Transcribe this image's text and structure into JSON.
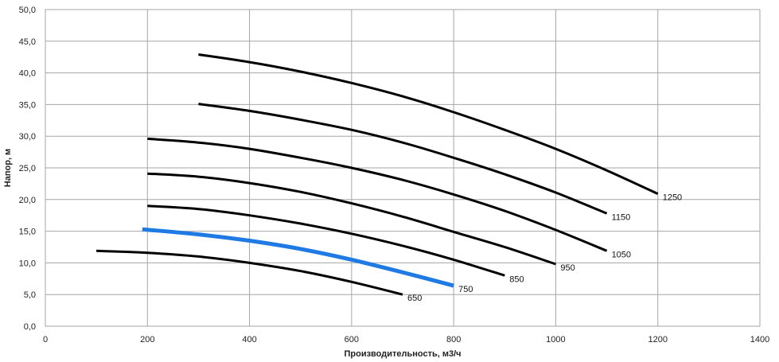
{
  "chart_data": {
    "type": "line",
    "title": "",
    "xlabel": "Производительность,  м3/ч",
    "ylabel": "Напор, м",
    "xlim": [
      0,
      1400
    ],
    "ylim": [
      0,
      50
    ],
    "x_ticks": [
      "0",
      "200",
      "400",
      "600",
      "800",
      "1000",
      "1200",
      "1400"
    ],
    "y_ticks": [
      "0,0",
      "5,0",
      "10,0",
      "15,0",
      "20,0",
      "25,0",
      "30,0",
      "35,0",
      "40,0",
      "45,0",
      "50,0"
    ],
    "grid": true,
    "legend": "inline end labels",
    "series": [
      {
        "name": "650",
        "color": "#000000",
        "points": [
          [
            100,
            11.9
          ],
          [
            200,
            11.6
          ],
          [
            300,
            11.0
          ],
          [
            400,
            10.0
          ],
          [
            500,
            8.7
          ],
          [
            600,
            7.0
          ],
          [
            700,
            5.0
          ]
        ]
      },
      {
        "name": "750",
        "color": "#1f7be3",
        "points": [
          [
            190,
            15.3
          ],
          [
            300,
            14.5
          ],
          [
            400,
            13.5
          ],
          [
            500,
            12.2
          ],
          [
            600,
            10.5
          ],
          [
            700,
            8.5
          ],
          [
            800,
            6.4
          ]
        ]
      },
      {
        "name": "850",
        "color": "#000000",
        "points": [
          [
            200,
            19.0
          ],
          [
            300,
            18.5
          ],
          [
            400,
            17.5
          ],
          [
            500,
            16.2
          ],
          [
            600,
            14.6
          ],
          [
            700,
            12.7
          ],
          [
            800,
            10.5
          ],
          [
            900,
            8.0
          ]
        ]
      },
      {
        "name": "950",
        "color": "#000000",
        "points": [
          [
            200,
            24.1
          ],
          [
            300,
            23.6
          ],
          [
            400,
            22.6
          ],
          [
            500,
            21.2
          ],
          [
            600,
            19.4
          ],
          [
            700,
            17.3
          ],
          [
            800,
            14.9
          ],
          [
            900,
            12.5
          ],
          [
            1000,
            9.8
          ]
        ]
      },
      {
        "name": "1050",
        "color": "#000000",
        "points": [
          [
            200,
            29.6
          ],
          [
            300,
            29.0
          ],
          [
            400,
            28.0
          ],
          [
            500,
            26.6
          ],
          [
            600,
            25.0
          ],
          [
            700,
            23.1
          ],
          [
            800,
            20.8
          ],
          [
            900,
            18.2
          ],
          [
            1000,
            15.2
          ],
          [
            1100,
            11.9
          ]
        ]
      },
      {
        "name": "1150",
        "color": "#000000",
        "points": [
          [
            300,
            35.1
          ],
          [
            400,
            34.0
          ],
          [
            500,
            32.6
          ],
          [
            600,
            31.0
          ],
          [
            700,
            29.0
          ],
          [
            800,
            26.6
          ],
          [
            900,
            24.0
          ],
          [
            1000,
            21.1
          ],
          [
            1100,
            17.8
          ]
        ]
      },
      {
        "name": "1250",
        "color": "#000000",
        "points": [
          [
            300,
            42.9
          ],
          [
            400,
            41.7
          ],
          [
            500,
            40.2
          ],
          [
            600,
            38.4
          ],
          [
            700,
            36.3
          ],
          [
            800,
            33.8
          ],
          [
            900,
            31.0
          ],
          [
            1000,
            28.0
          ],
          [
            1100,
            24.6
          ],
          [
            1200,
            20.9
          ]
        ]
      }
    ]
  }
}
